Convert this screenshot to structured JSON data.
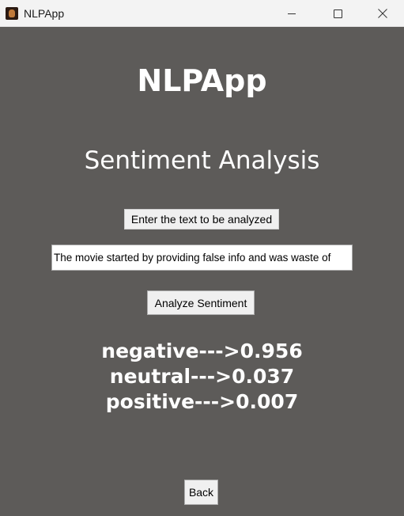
{
  "window": {
    "title": "NLPApp"
  },
  "main": {
    "app_heading": "NLPApp",
    "section_heading": "Sentiment Analysis",
    "prompt_label": "Enter the text to be analyzed",
    "text_input_value": "The movie started by providing false info and was waste of",
    "analyze_button_label": "Analyze Sentiment",
    "results": [
      "negative--->0.956",
      "neutral--->0.037",
      "positive--->0.007"
    ],
    "back_button_label": "Back"
  },
  "colors": {
    "background": "#5d5b59",
    "titlebar": "#f3f3f3",
    "text_light": "#ffffff",
    "widget_bg": "#f0f0f0"
  },
  "icons": {
    "app": "app-icon",
    "minimize": "minimize-icon",
    "maximize": "maximize-icon",
    "close": "close-icon"
  }
}
